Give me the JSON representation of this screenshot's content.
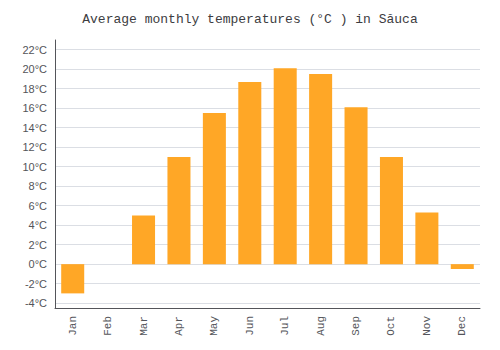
{
  "chart_data": {
    "type": "bar",
    "title": "Average monthly temperatures (°C ) in Săuca",
    "categories": [
      "Jan",
      "Feb",
      "Mar",
      "Apr",
      "May",
      "Jun",
      "Jul",
      "Aug",
      "Sep",
      "Oct",
      "Nov",
      "Dec"
    ],
    "values": [
      -3.0,
      0.0,
      5.0,
      11.0,
      15.5,
      18.7,
      20.1,
      19.5,
      16.1,
      11.0,
      5.3,
      -0.5
    ],
    "color": "#FFA726",
    "ylim": [
      -4.5,
      23.0
    ],
    "yticks": [
      {
        "value": -4,
        "label": "-4°C"
      },
      {
        "value": -2,
        "label": "-2°C"
      },
      {
        "value": 0,
        "label": "0°C"
      },
      {
        "value": 2,
        "label": "2°C"
      },
      {
        "value": 4,
        "label": "4°C"
      },
      {
        "value": 6,
        "label": "6°C"
      },
      {
        "value": 8,
        "label": "8°C"
      },
      {
        "value": 10,
        "label": "10°C"
      },
      {
        "value": 12,
        "label": "12°C"
      },
      {
        "value": 14,
        "label": "14°C"
      },
      {
        "value": 16,
        "label": "16°C"
      },
      {
        "value": 18,
        "label": "18°C"
      },
      {
        "value": 20,
        "label": "20°C"
      },
      {
        "value": 22,
        "label": "22°C"
      }
    ],
    "grid": true
  }
}
